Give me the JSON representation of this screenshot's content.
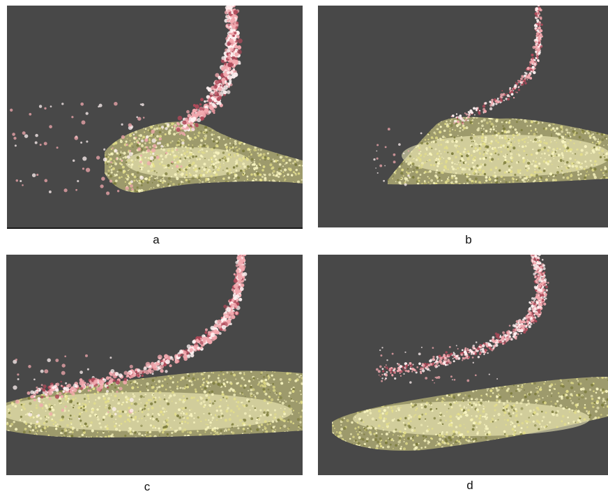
{
  "figure": {
    "panels": [
      {
        "id": "a",
        "label": "a"
      },
      {
        "id": "b",
        "label": "b"
      },
      {
        "id": "c",
        "label": "c"
      },
      {
        "id": "d",
        "label": "d"
      }
    ]
  },
  "colors": {
    "panel_background": "#484848",
    "droplet_pink": "#f2a8ae",
    "droplet_white": "#fff2f2",
    "droplet_dark": "#b04a5a",
    "bed_yellow": "#e4df8a",
    "bed_light": "#fbf7c2",
    "bed_shadow": "#7a7a3a"
  }
}
